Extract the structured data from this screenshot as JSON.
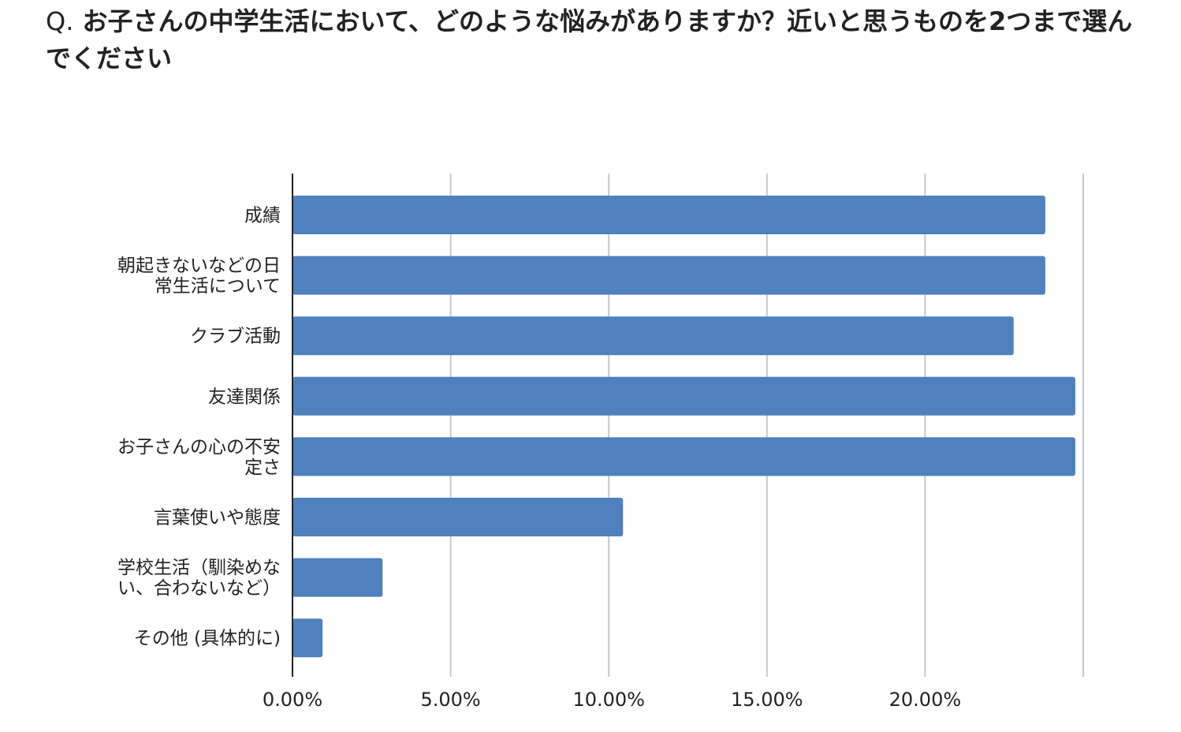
{
  "question": {
    "prefix": "Q.",
    "text": "お子さんの中学生活において、どのような悩みがありますか？近いと思うものを2つまで選んでください"
  },
  "colors": {
    "bar": "#4e81bd",
    "grid": "#c8c8c8",
    "axis": "#222222"
  },
  "chart_data": {
    "type": "bar",
    "orientation": "horizontal",
    "title": "",
    "xlabel": "",
    "ylabel": "",
    "xlim": [
      0,
      25
    ],
    "grid": true,
    "legend": "none",
    "categories": [
      [
        "成績"
      ],
      [
        "朝起きないなどの日",
        "常生活について"
      ],
      [
        "クラブ活動"
      ],
      [
        "友達関係"
      ],
      [
        "お子さんの心の不安",
        "定さ"
      ],
      [
        "言葉使いや態度"
      ],
      [
        "学校生活（馴染めな",
        "い、合わないなど）"
      ],
      [
        "その他 (具体的に)"
      ]
    ],
    "values": [
      23.8,
      23.8,
      22.8,
      24.75,
      24.75,
      10.45,
      2.85,
      0.95
    ],
    "ticks": [
      {
        "value": 0,
        "label": "0.00%"
      },
      {
        "value": 5,
        "label": "5.00%"
      },
      {
        "value": 10,
        "label": "10.00%"
      },
      {
        "value": 15,
        "label": "15.00%"
      },
      {
        "value": 20,
        "label": "20.00%"
      },
      {
        "value": 25,
        "label": ""
      }
    ]
  }
}
